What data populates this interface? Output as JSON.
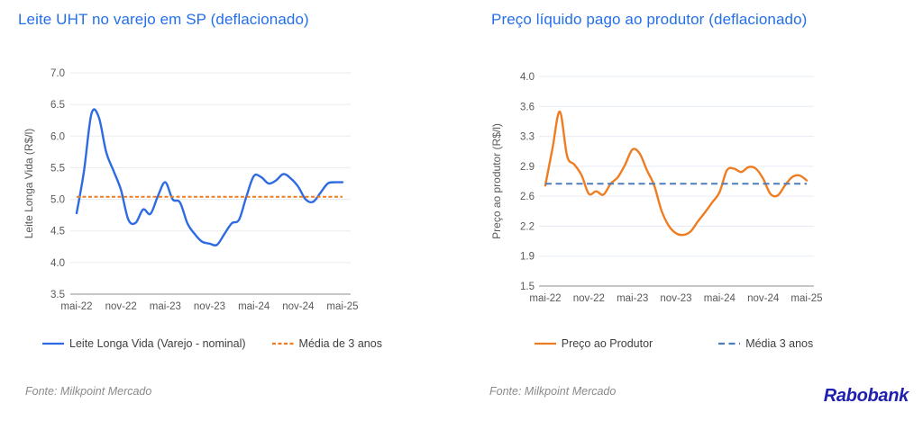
{
  "page": {
    "background": "#ffffff"
  },
  "branding": {
    "logo_text": "Rabobank",
    "logo_color": "#2020af"
  },
  "chart_data": [
    {
      "type": "line",
      "title": "Leite UHT no varejo em SP (deflacionado)",
      "title_color": "#2470e8",
      "ylabel": "Leite Longa Vida (R$/l)",
      "xlabel": "",
      "x": [
        "mai-22",
        "jun-22",
        "jul-22",
        "ago-22",
        "set-22",
        "out-22",
        "nov-22",
        "dez-22",
        "jan-23",
        "fev-23",
        "mar-23",
        "abr-23",
        "mai-23",
        "jun-23",
        "jul-23",
        "ago-23",
        "set-23",
        "out-23",
        "nov-23",
        "dez-23",
        "jan-24",
        "fev-24",
        "mar-24",
        "abr-24",
        "mai-24",
        "jun-24",
        "jul-24",
        "ago-24",
        "set-24",
        "out-24",
        "nov-24",
        "dez-24",
        "jan-25",
        "fev-25",
        "mar-25",
        "abr-25",
        "mai-25"
      ],
      "xtick_labels": [
        "mai-22",
        "nov-22",
        "mai-23",
        "nov-23",
        "mai-24",
        "nov-24",
        "mai-25"
      ],
      "ylim": [
        3.5,
        7.0
      ],
      "ytick_labels": [
        "3.5",
        "4.0",
        "4.5",
        "5.0",
        "5.5",
        "6.0",
        "6.5",
        "7.0"
      ],
      "grid": "horizontal",
      "gridline_color": "#ebebeb",
      "axisline_color": "#a3a3a3",
      "legend_position": "bottom",
      "series": [
        {
          "name": "Leite Longa Vida (Varejo - nominal)",
          "kind": "smooth-line",
          "style": "solid",
          "color": "#2e6be2",
          "values": [
            4.78,
            5.45,
            6.35,
            6.3,
            5.75,
            5.45,
            5.15,
            4.68,
            4.63,
            4.84,
            4.77,
            5.05,
            5.27,
            5.0,
            4.95,
            4.62,
            4.45,
            4.33,
            4.3,
            4.28,
            4.45,
            4.62,
            4.68,
            5.05,
            5.37,
            5.35,
            5.25,
            5.3,
            5.4,
            5.33,
            5.2,
            5.0,
            4.96,
            5.1,
            5.25,
            5.27,
            5.27
          ]
        },
        {
          "name": "Média de 3 anos",
          "kind": "constant-line",
          "style": "dashed",
          "color": "#ee7d22",
          "value": 5.04
        }
      ],
      "source": "Fonte: Milkpoint Mercado"
    },
    {
      "type": "line",
      "title": "Preço líquido pago ao produtor (deflacionado)",
      "title_color": "#2470e8",
      "ylabel": "Preço ao produtor (R$/l)",
      "xlabel": "",
      "x": [
        "mai-22",
        "jun-22",
        "jul-22",
        "ago-22",
        "set-22",
        "out-22",
        "nov-22",
        "dez-22",
        "jan-23",
        "fev-23",
        "mar-23",
        "abr-23",
        "mai-23",
        "jun-23",
        "jul-23",
        "ago-23",
        "set-23",
        "out-23",
        "nov-23",
        "dez-23",
        "jan-24",
        "fev-24",
        "mar-24",
        "abr-24",
        "mai-24",
        "jun-24",
        "jul-24",
        "ago-24",
        "set-24",
        "out-24",
        "nov-24",
        "dez-24",
        "jan-25",
        "fev-25",
        "mar-25",
        "abr-25",
        "mai-25"
      ],
      "xtick_labels": [
        "mai-22",
        "nov-22",
        "mai-23",
        "nov-23",
        "mai-24",
        "nov-24",
        "mai-25"
      ],
      "ylim": [
        1.5,
        4.0
      ],
      "ytick_labels": [
        "1.5",
        "1.9",
        "2.2",
        "2.6",
        "2.9",
        "3.3",
        "3.6",
        "4.0"
      ],
      "grid": "horizontal",
      "gridline_color": "#e6ecf5",
      "axisline_color": "#a3a3a3",
      "legend_position": "bottom",
      "series": [
        {
          "name": "Preço ao Produtor",
          "kind": "smooth-line",
          "style": "solid",
          "color": "#ee7d22",
          "values": [
            2.7,
            3.15,
            3.58,
            3.05,
            2.95,
            2.82,
            2.6,
            2.63,
            2.59,
            2.72,
            2.8,
            2.95,
            3.13,
            3.08,
            2.88,
            2.7,
            2.4,
            2.22,
            2.13,
            2.11,
            2.15,
            2.27,
            2.38,
            2.5,
            2.62,
            2.88,
            2.9,
            2.86,
            2.92,
            2.9,
            2.78,
            2.6,
            2.58,
            2.7,
            2.8,
            2.82,
            2.76
          ]
        },
        {
          "name": "Média 3 anos",
          "kind": "constant-line",
          "style": "dashed",
          "color": "#4d7ebb",
          "value": 2.72
        }
      ],
      "source": "Fonte: Milkpoint Mercado"
    }
  ]
}
